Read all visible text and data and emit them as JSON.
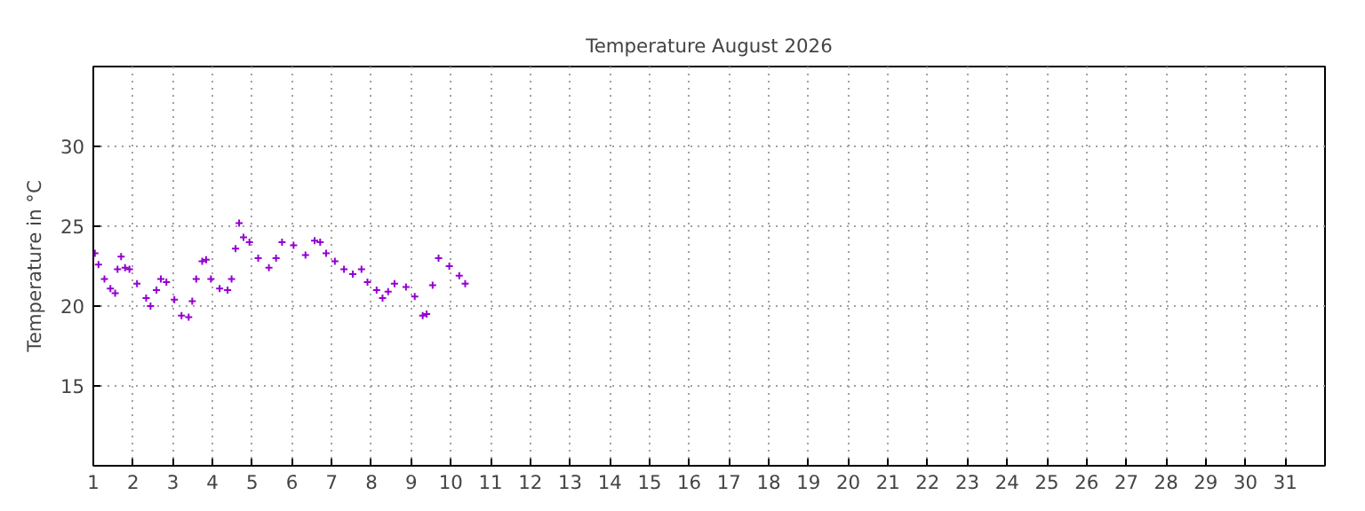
{
  "chart_data": {
    "type": "scatter",
    "title": "Temperature August 2026",
    "ylabel": "Temperature in °C",
    "x": [
      1.04,
      1.13,
      1.28,
      1.43,
      1.55,
      1.61,
      1.7,
      1.8,
      1.91,
      2.1,
      2.33,
      2.44,
      2.59,
      2.7,
      2.84,
      3.04,
      3.22,
      3.4,
      3.49,
      3.59,
      3.74,
      3.84,
      3.96,
      4.18,
      4.38,
      4.48,
      4.58,
      4.67,
      4.78,
      4.93,
      5.15,
      5.42,
      5.6,
      5.75,
      6.04,
      6.34,
      6.57,
      6.71,
      6.86,
      7.08,
      7.31,
      7.53,
      7.75,
      7.9,
      8.13,
      8.28,
      8.42,
      8.58,
      8.87,
      9.09,
      9.29,
      9.39,
      9.54,
      9.69,
      9.96,
      10.21,
      10.36
    ],
    "series": [
      {
        "color": "#9400d3",
        "values": [
          23.3,
          22.6,
          21.7,
          21.1,
          20.8,
          22.3,
          23.1,
          22.4,
          22.3,
          21.4,
          20.5,
          20.0,
          21.0,
          21.7,
          21.5,
          20.4,
          19.4,
          19.3,
          20.3,
          21.7,
          22.8,
          22.9,
          21.7,
          21.1,
          21.0,
          21.7,
          23.6,
          25.2,
          24.3,
          24.0,
          23.0,
          22.4,
          23.0,
          24.0,
          23.8,
          23.2,
          24.1,
          24.0,
          23.3,
          22.8,
          22.3,
          22.0,
          22.3,
          21.5,
          21.0,
          20.5,
          20.9,
          21.4,
          21.2,
          20.6,
          19.4,
          19.5,
          21.3,
          23.0,
          22.5,
          21.9,
          21.4
        ]
      }
    ],
    "xlim": [
      1,
      32
    ],
    "xticks": [
      1,
      2,
      3,
      4,
      5,
      6,
      7,
      8,
      9,
      10,
      11,
      12,
      13,
      14,
      15,
      16,
      17,
      18,
      19,
      20,
      21,
      22,
      23,
      24,
      25,
      26,
      27,
      28,
      29,
      30,
      31
    ],
    "ylim": [
      10,
      35
    ],
    "yticks": [
      15,
      20,
      25,
      30
    ],
    "grid": true,
    "marker": "cross"
  }
}
